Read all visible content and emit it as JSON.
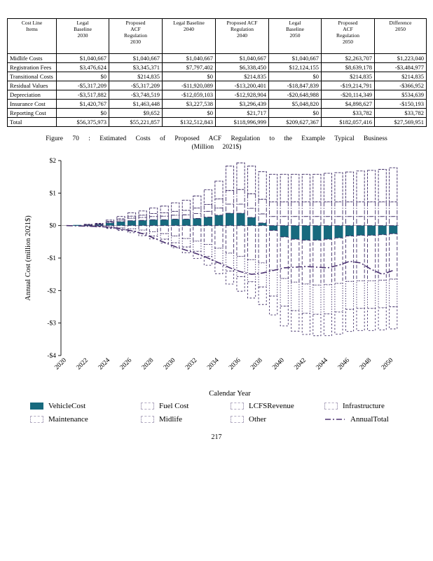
{
  "page": {
    "number": "217"
  },
  "colors": {
    "vehicle_fill": "#176a7e",
    "bar_outline": "#3e2c66",
    "total_line": "#4d3472",
    "axis": "#000000"
  },
  "table": {
    "headers": [
      "Cost Line\nItems",
      "Legal\nBaseline\n2030",
      "Proposed\nACF\nRegulation\n2030",
      "Legal Baseline\n2040",
      "Proposed ACF\nRegulation\n2040",
      "Legal\nBaseline\n2050",
      "Proposed\nACF\nRegulation\n2050",
      "Difference\n2050"
    ],
    "rows": [
      {
        "label": "Midlife Costs",
        "values": [
          "$1,040,667",
          "$1,040,667",
          "$1,040,667",
          "$1,040,667",
          "$1,040,667",
          "$2,263,707",
          "$1,223,040"
        ],
        "is_total": false
      },
      {
        "label": "Registration Fees",
        "values": [
          "$3,476,624",
          "$3,345,371",
          "$7,797,402",
          "$6,338,450",
          "$12,124,155",
          "$8,639,178",
          "-$3,484,977"
        ],
        "is_total": false
      },
      {
        "label": "Transitional Costs",
        "values": [
          "$0",
          "$214,835",
          "$0",
          "$214,835",
          "$0",
          "$214,835",
          "$214,835"
        ],
        "is_total": false
      },
      {
        "label": "Residual Values",
        "values": [
          "-$5,317,209",
          "-$5,317,209",
          "-$11,920,089",
          "-$13,200,401",
          "-$18,847,839",
          "-$19,214,791",
          "-$366,952"
        ],
        "is_total": false
      },
      {
        "label": "Depreciation",
        "values": [
          "-$3,517,882",
          "-$3,748,519",
          "-$12,059,103",
          "-$12,928,904",
          "-$20,648,988",
          "-$20,114,349",
          "$534,639"
        ],
        "is_total": false
      },
      {
        "label": "Insurance Cost",
        "values": [
          "$1,420,767",
          "$1,463,448",
          "$3,227,538",
          "$3,296,439",
          "$5,048,820",
          "$4,898,627",
          "-$150,193"
        ],
        "is_total": false
      },
      {
        "label": "Reporting Cost",
        "values": [
          "$0",
          "$9,652",
          "$0",
          "$21,717",
          "$0",
          "$33,782",
          "$33,782"
        ],
        "is_total": false
      },
      {
        "label": "Total",
        "values": [
          "$56,375,973",
          "$55,221,857",
          "$132,512,843",
          "$118,996,999",
          "$209,627,367",
          "$182,057,416",
          "$27,569,951"
        ],
        "is_total": true
      }
    ]
  },
  "caption": {
    "line1": "Figure 70 : Estimated Costs of Proposed ACF Regulation to the Example Typical Business",
    "line2": "(Million 2021$)"
  },
  "chart_data": {
    "type": "bar",
    "stacked": true,
    "title": "",
    "xlabel": "Calendar Year",
    "ylabel": "Annual Cost (million 2021$)",
    "ylim": [
      -4,
      2
    ],
    "yticks": [
      2,
      1,
      0,
      -1,
      -2,
      -3,
      -4
    ],
    "ytick_labels": [
      "$2",
      "$1",
      "$0",
      "-$1",
      "-$2",
      "-$3",
      "-$4"
    ],
    "years": [
      2020,
      2021,
      2022,
      2023,
      2024,
      2025,
      2026,
      2027,
      2028,
      2029,
      2030,
      2031,
      2032,
      2033,
      2034,
      2035,
      2036,
      2037,
      2038,
      2039,
      2040,
      2041,
      2042,
      2043,
      2044,
      2045,
      2046,
      2047,
      2048,
      2049,
      2050
    ],
    "xticks": [
      2020,
      2022,
      2024,
      2026,
      2028,
      2030,
      2032,
      2034,
      2036,
      2038,
      2040,
      2042,
      2044,
      2046,
      2048,
      2050
    ],
    "series": [
      {
        "name": "VehicleCost",
        "fill": true,
        "dash": "",
        "values": [
          0,
          0.01,
          0.02,
          0.03,
          0.08,
          0.12,
          0.15,
          0.16,
          0.18,
          0.18,
          0.2,
          0.2,
          0.22,
          0.26,
          0.32,
          0.38,
          0.38,
          0.25,
          0.08,
          -0.15,
          -0.35,
          -0.42,
          -0.45,
          -0.45,
          -0.42,
          -0.38,
          -0.32,
          -0.3,
          -0.3,
          -0.28,
          -0.25
        ]
      },
      {
        "name": "Fuel Cost",
        "fill": false,
        "dash": "5 2.5",
        "values": [
          0,
          0,
          -0.01,
          -0.02,
          -0.04,
          -0.07,
          -0.1,
          -0.14,
          -0.19,
          -0.25,
          -0.32,
          -0.4,
          -0.48,
          -0.58,
          -0.7,
          -0.85,
          -0.95,
          -1.05,
          -1.15,
          -1.22,
          -1.28,
          -1.32,
          -1.35,
          -1.38,
          -1.4,
          -1.4,
          -1.4,
          -1.4,
          -1.4,
          -1.4,
          -1.4
        ]
      },
      {
        "name": "LCFSRevenue",
        "fill": false,
        "dash": "1.5 2",
        "values": [
          0,
          0,
          -0.01,
          -0.01,
          -0.03,
          -0.05,
          -0.07,
          -0.1,
          -0.13,
          -0.17,
          -0.21,
          -0.26,
          -0.31,
          -0.37,
          -0.45,
          -0.55,
          -0.62,
          -0.68,
          -0.74,
          -0.8,
          -0.85,
          -0.88,
          -0.9,
          -0.9,
          -0.9,
          -0.88,
          -0.86,
          -0.85,
          -0.85,
          -0.85,
          -0.85
        ]
      },
      {
        "name": "Infrastructure",
        "fill": false,
        "dash": "7 2.5",
        "values": [
          0,
          0,
          0.01,
          0.01,
          0.03,
          0.05,
          0.08,
          0.09,
          0.1,
          0.11,
          0.12,
          0.13,
          0.15,
          0.18,
          0.22,
          0.28,
          0.28,
          0.28,
          0.28,
          0.28,
          0.28,
          0.28,
          0.28,
          0.28,
          0.28,
          0.28,
          0.28,
          0.28,
          0.28,
          0.28,
          0.28
        ]
      },
      {
        "name": "Maintenance",
        "fill": false,
        "dash": "2.5 2.5",
        "values": [
          0,
          0,
          0,
          -0.01,
          -0.02,
          -0.03,
          -0.05,
          -0.07,
          -0.09,
          -0.12,
          -0.15,
          -0.18,
          -0.22,
          -0.27,
          -0.33,
          -0.4,
          -0.45,
          -0.5,
          -0.54,
          -0.58,
          -0.61,
          -0.63,
          -0.65,
          -0.66,
          -0.67,
          -0.68,
          -0.68,
          -0.68,
          -0.68,
          -0.68,
          -0.68
        ]
      },
      {
        "name": "Midlife",
        "fill": false,
        "dash": "6 2 1.5 2",
        "values": [
          0,
          0,
          0,
          0.01,
          0.02,
          0.04,
          0.06,
          0.07,
          0.09,
          0.1,
          0.12,
          0.14,
          0.17,
          0.21,
          0.28,
          0.42,
          0.45,
          0.45,
          0.45,
          0.45,
          0.45,
          0.45,
          0.45,
          0.45,
          0.45,
          0.45,
          0.45,
          0.45,
          0.45,
          0.45,
          0.45
        ]
      },
      {
        "name": "Other",
        "fill": false,
        "dash": "3.5 1.5",
        "values": [
          0,
          0,
          0.01,
          0.02,
          0.04,
          0.07,
          0.1,
          0.13,
          0.17,
          0.21,
          0.26,
          0.31,
          0.37,
          0.45,
          0.55,
          0.75,
          0.82,
          0.85,
          0.85,
          0.85,
          0.85,
          0.85,
          0.85,
          0.85,
          0.88,
          0.9,
          0.92,
          0.95,
          0.97,
          1.0,
          1.05
        ]
      }
    ],
    "annual_total": {
      "name": "AnnualTotal",
      "values": [
        0,
        -0.01,
        -0.02,
        -0.03,
        -0.05,
        -0.1,
        -0.16,
        -0.25,
        -0.38,
        -0.52,
        -0.65,
        -0.76,
        -0.87,
        -1.0,
        -1.15,
        -1.3,
        -1.42,
        -1.5,
        -1.46,
        -1.38,
        -1.3,
        -1.28,
        -1.26,
        -1.28,
        -1.3,
        -1.22,
        -1.1,
        -1.15,
        -1.35,
        -1.5,
        -1.38
      ]
    },
    "legend_labels": [
      "VehicleCost",
      "Fuel Cost",
      "LCFSRevenue",
      "Infrastructure",
      "Maintenance",
      "Midlife",
      "Other",
      "AnnualTotal"
    ],
    "legend_position": "bottom"
  }
}
